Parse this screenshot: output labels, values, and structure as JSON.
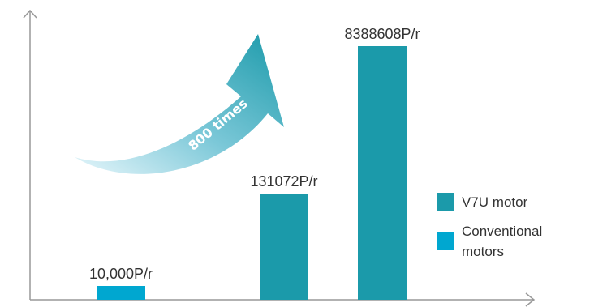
{
  "chart_data": {
    "type": "bar",
    "categories": [
      "Conventional motors",
      "V7U motor",
      "V7U motor"
    ],
    "values": [
      10000,
      131072,
      8388608
    ],
    "value_labels": [
      "10,000P/r",
      "131072P/r",
      "8388608P/r"
    ],
    "series_colors": [
      "#00a7d0",
      "#1b9aaa",
      "#1b9aaa"
    ],
    "legend": [
      {
        "name": "V7U motor",
        "color": "#1b9aaa"
      },
      {
        "name": "Conventional motors",
        "name_lines": [
          "Conventional",
          "motors"
        ],
        "color": "#00a7d0"
      }
    ],
    "legend_position": "right",
    "annotation": "800 times",
    "grid": false,
    "title": "",
    "xlabel": "",
    "ylabel": ""
  },
  "colors": {
    "axis": "#999999",
    "text": "#333333",
    "arrow_start": "#e6f6fb",
    "arrow_end": "#1b9aaa"
  }
}
